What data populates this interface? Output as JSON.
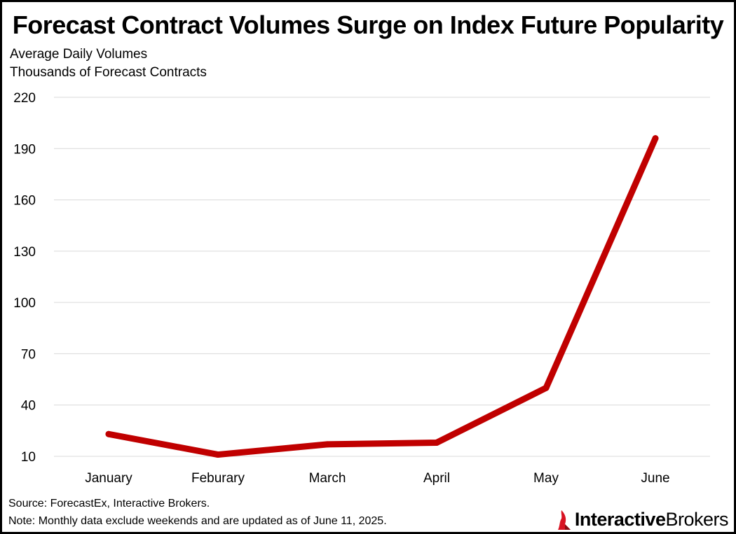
{
  "colors": {
    "line": "#c00000",
    "grid": "#d9d9d9",
    "logo_red": "#d81222"
  },
  "chart_data": {
    "type": "line",
    "title": "Forecast Contract Volumes Surge on Index Future Popularity",
    "subtitle_lines": [
      "Average Daily Volumes",
      "Thousands of Forecast Contracts"
    ],
    "categories": [
      "January",
      "Feburary",
      "March",
      "April",
      "May",
      "June"
    ],
    "series": [
      {
        "name": "Average Daily Volumes",
        "values": [
          23,
          11,
          17,
          18,
          50,
          196
        ]
      }
    ],
    "ylim": [
      10,
      220
    ],
    "yticks": [
      10,
      40,
      70,
      100,
      130,
      160,
      190,
      220
    ],
    "grid": true,
    "legend": "none",
    "xlabel": "",
    "ylabel": ""
  },
  "footer": {
    "source": "Source: ForecastEx, Interactive Brokers.",
    "note": "Note: Monthly data exclude weekends and are updated as of June 11, 2025."
  },
  "logo": {
    "text_part1": "Interactive",
    "text_part2": "Brokers",
    "icon": "ib-flame-logo-icon"
  }
}
